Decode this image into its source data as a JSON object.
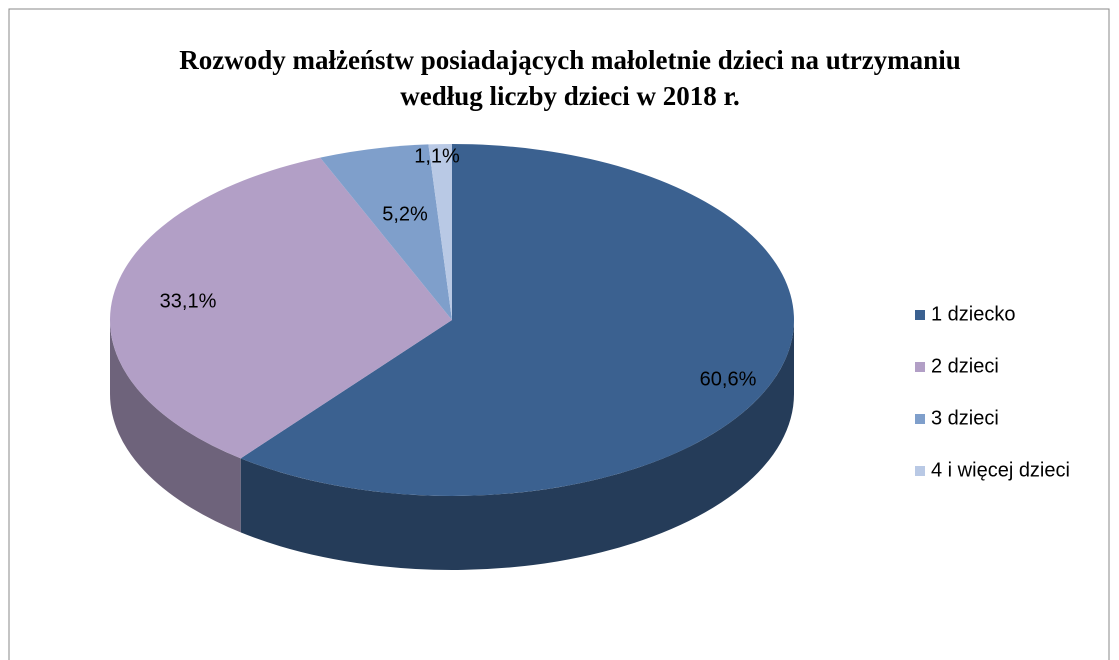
{
  "chart_data": {
    "type": "pie3d",
    "title": "Rozwody małżeństw posiadających małoletnie dzieci na utrzymaniu według liczby dzieci w 2018 r.",
    "categories": [
      "1 dziecko",
      "2 dzieci",
      "3 dzieci",
      "4 i więcej dzieci"
    ],
    "values": [
      60.6,
      33.1,
      5.2,
      1.1
    ],
    "value_labels": [
      "60,6%",
      "33,1%",
      "5,2%",
      "1,1%"
    ],
    "colors": [
      "#3b6190",
      "#b29fc6",
      "#7f9fcb",
      "#b9c9e5"
    ],
    "legend": "right"
  }
}
